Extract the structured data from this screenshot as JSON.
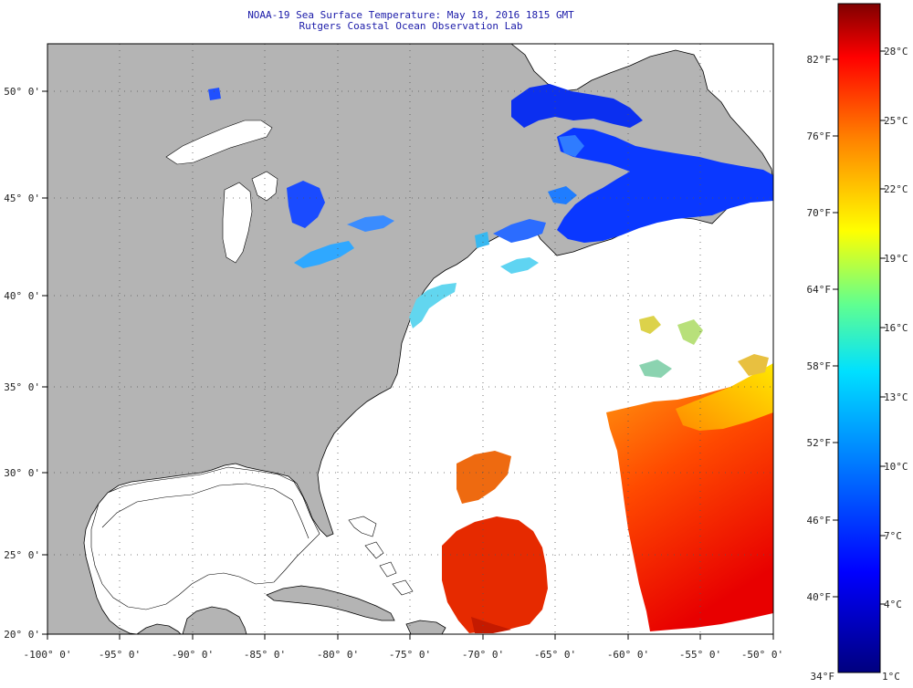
{
  "header": {
    "title": "NOAA-19 Sea Surface Temperature:  May 18, 2016 1815 GMT",
    "subtitle": "Rutgers Coastal Ocean Observation Lab"
  },
  "axes": {
    "lat_labels": [
      "50° 0'",
      "45° 0'",
      "40° 0'",
      "35° 0'",
      "30° 0'",
      "25° 0'",
      "20° 0'"
    ],
    "lon_labels": [
      "-100° 0'",
      "-95° 0'",
      "-90° 0'",
      "-85° 0'",
      "-80° 0'",
      "-75° 0'",
      "-70° 0'",
      "-65° 0'",
      "-60° 0'",
      "-55° 0'",
      "-50° 0'"
    ]
  },
  "colorbar": {
    "fahrenheit_labels": [
      "82°F",
      "76°F",
      "70°F",
      "64°F",
      "58°F",
      "52°F",
      "46°F",
      "40°F",
      "34°F"
    ],
    "celsius_labels": [
      "28°C",
      "25°C",
      "22°C",
      "19°C",
      "16°C",
      "13°C",
      "10°C",
      "7°C",
      "4°C",
      "1°C"
    ]
  },
  "colors": {
    "land": "#b4b4b4",
    "ocean_nodata": "#ffffff",
    "coast": "#000000",
    "title_text": "#1a1aa8",
    "scale_stops": [
      "#00007f",
      "#0000ff",
      "#0080ff",
      "#00ffff",
      "#80ff80",
      "#ffff00",
      "#ff8000",
      "#ff0000",
      "#7f0000"
    ]
  }
}
